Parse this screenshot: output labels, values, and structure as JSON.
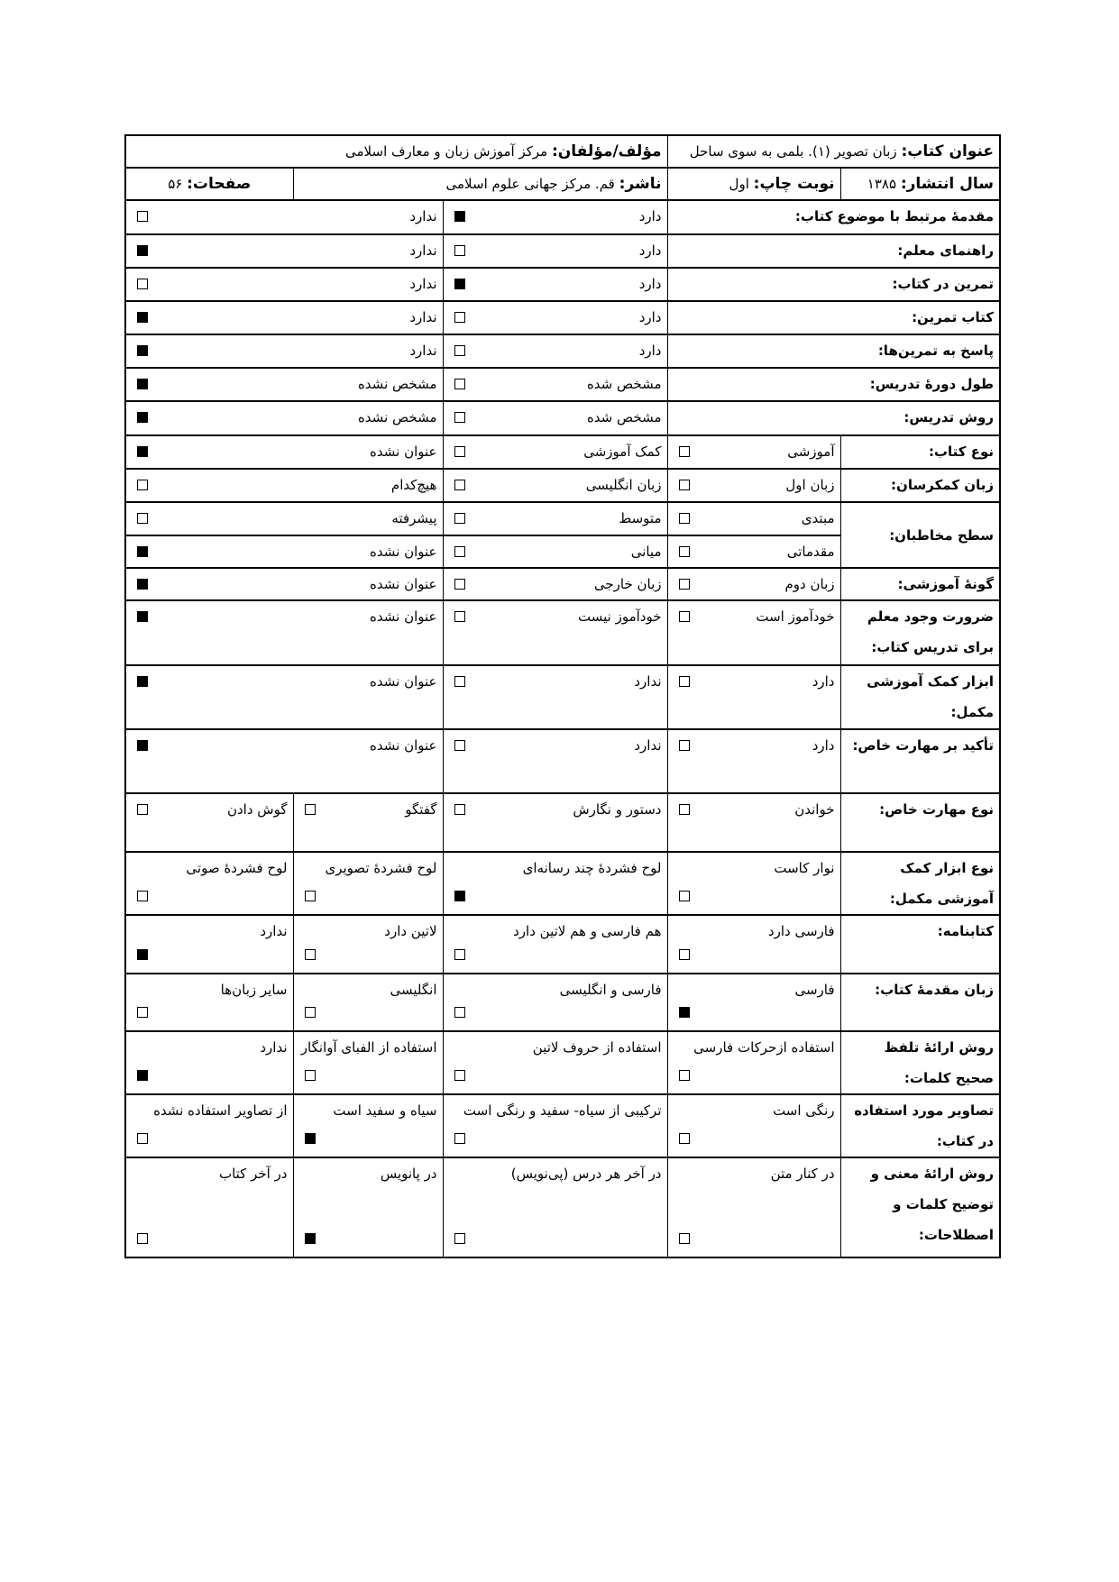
{
  "header": {
    "title_label": "عنوان کتاب:",
    "title_value": "زبان تصویر (۱). بلمی به سوی ساحل",
    "author_label": "مؤلف/مؤلفان:",
    "author_value": "مرکز آموزش زبان و معارف اسلامی",
    "year_label": "سال انتشار:",
    "year_value": "۱۳۸۵",
    "edition_label": "نوبت چاپ:",
    "edition_value": "اول",
    "publisher_label": "ناشر:",
    "publisher_value": "قم. مرکز جهانی علوم اسلامی",
    "pages_label": "صفحات:",
    "pages_value": "۵۶"
  },
  "rows": [
    {
      "label": "مقدمهٔ مرتبط با موضوع کتاب:",
      "options": [
        {
          "text": "دارد",
          "checked": true
        },
        {
          "text": "ندارد",
          "checked": false
        }
      ]
    },
    {
      "label": "راهنمای معلم:",
      "options": [
        {
          "text": "دارد",
          "checked": false
        },
        {
          "text": "ندارد",
          "checked": true
        }
      ]
    },
    {
      "label": "تمرین در کتاب:",
      "options": [
        {
          "text": "دارد",
          "checked": true
        },
        {
          "text": "ندارد",
          "checked": false
        }
      ]
    },
    {
      "label": "کتاب تمرین:",
      "options": [
        {
          "text": "دارد",
          "checked": false
        },
        {
          "text": "ندارد",
          "checked": true
        }
      ]
    },
    {
      "label": "پاسخ به تمرین‌ها:",
      "options": [
        {
          "text": "دارد",
          "checked": false
        },
        {
          "text": "ندارد",
          "checked": true
        }
      ]
    },
    {
      "label": "طول دورهٔ تدریس:",
      "options": [
        {
          "text": "مشخص شده",
          "checked": false
        },
        {
          "text": "مشخص نشده",
          "checked": true
        }
      ]
    },
    {
      "label": "روش تدریس:",
      "options": [
        {
          "text": "مشخص شده",
          "checked": false
        },
        {
          "text": "مشخص نشده",
          "checked": true
        }
      ]
    },
    {
      "label": "نوع کتاب:",
      "options": [
        {
          "text": "آموزشی",
          "checked": false
        },
        {
          "text": "کمک آموزشی",
          "checked": false
        },
        {
          "text": "عنوان نشده",
          "checked": true
        }
      ]
    },
    {
      "label": "زبان کمکرسان:",
      "options": [
        {
          "text": "زبان اول",
          "checked": false
        },
        {
          "text": "زبان انگلیسی",
          "checked": false
        },
        {
          "text": "هیچ‌کدام",
          "checked": false
        }
      ]
    },
    {
      "label": "سطح مخاطبان:",
      "options": [
        {
          "text": "مبتدی",
          "checked": false
        },
        {
          "text": "متوسط",
          "checked": false
        },
        {
          "text": "پیشرفته",
          "checked": false
        }
      ],
      "options2": [
        {
          "text": "مقدماتی",
          "checked": false
        },
        {
          "text": "میانی",
          "checked": false
        },
        {
          "text": "عنوان نشده",
          "checked": true
        }
      ]
    },
    {
      "label": "گونهٔ آموزشی:",
      "options": [
        {
          "text": "زبان دوم",
          "checked": false
        },
        {
          "text": "زبان خارجی",
          "checked": false
        },
        {
          "text": "عنوان نشده",
          "checked": true
        }
      ]
    },
    {
      "label": "ضرورت وجود معلم برای تدریس کتاب:",
      "options": [
        {
          "text": "خودآموز است",
          "checked": false
        },
        {
          "text": "خودآموز نیست",
          "checked": false
        },
        {
          "text": "عنوان نشده",
          "checked": true
        }
      ]
    },
    {
      "label": "ابزار کمک آموزشی مکمل:",
      "options": [
        {
          "text": "دارد",
          "checked": false
        },
        {
          "text": "ندارد",
          "checked": false
        },
        {
          "text": "عنوان نشده",
          "checked": true
        }
      ]
    },
    {
      "label": "تأکید بر مهارت خاص:",
      "options": [
        {
          "text": "دارد",
          "checked": false
        },
        {
          "text": "ندارد",
          "checked": false
        },
        {
          "text": "عنوان نشده",
          "checked": true
        }
      ]
    },
    {
      "label": "نوع مهارت خاص:",
      "options": [
        {
          "text": "خواندن",
          "checked": false
        },
        {
          "text": "دستور و نگارش",
          "checked": false
        },
        {
          "text": "گفتگو",
          "checked": false
        },
        {
          "text": "گوش دادن",
          "checked": false
        }
      ]
    },
    {
      "label": "نوع ابزار کمک آموزشی مکمل:",
      "options": [
        {
          "text": "نوار کاست",
          "checked": false
        },
        {
          "text": "لوح فشردهٔ چند رسانه‌ای",
          "checked": true
        },
        {
          "text": "لوح فشردهٔ تصویری",
          "checked": false
        },
        {
          "text": "لوح فشردهٔ صوتی",
          "checked": false
        }
      ]
    },
    {
      "label": "کتابنامه:",
      "options": [
        {
          "text": "فارسی دارد",
          "checked": false
        },
        {
          "text": "هم فارسی و هم لاتین دارد",
          "checked": false
        },
        {
          "text": "لاتین دارد",
          "checked": false
        },
        {
          "text": "ندارد",
          "checked": true
        }
      ]
    },
    {
      "label": "زبان مقدمهٔ کتاب:",
      "options": [
        {
          "text": "فارسی",
          "checked": true
        },
        {
          "text": "فارسی و انگلیسی",
          "checked": false
        },
        {
          "text": "انگلیسی",
          "checked": false
        },
        {
          "text": "سایر زبان‌ها",
          "checked": false
        }
      ]
    },
    {
      "label": "روش ارائهٔ تلفظ صحیح کلمات:",
      "options": [
        {
          "text": "استفاده ازحرکات فارسی",
          "checked": false
        },
        {
          "text": "استفاده از حروف لاتین",
          "checked": false
        },
        {
          "text": "استفاده از الفبای آوانگار",
          "checked": false
        },
        {
          "text": "ندارد",
          "checked": true
        }
      ]
    },
    {
      "label": "تصاویر مورد استفاده در کتاب:",
      "options": [
        {
          "text": "رنگی است",
          "checked": false
        },
        {
          "text": "ترکیبی از سیاه- سفید و رنگی است",
          "checked": false
        },
        {
          "text": "سیاه و سفید است",
          "checked": true
        },
        {
          "text": "از تصاویر استفاده نشده",
          "checked": false
        }
      ]
    },
    {
      "label": "روش ارائهٔ معنی و توضیح کلمات و اصطلاحات:",
      "options": [
        {
          "text": "در کنار متن",
          "checked": false
        },
        {
          "text": "در آخر هر درس (پی‌نویس)",
          "checked": false
        },
        {
          "text": "در پانویس",
          "checked": true
        },
        {
          "text": "در آخر کتاب",
          "checked": false
        }
      ]
    }
  ]
}
